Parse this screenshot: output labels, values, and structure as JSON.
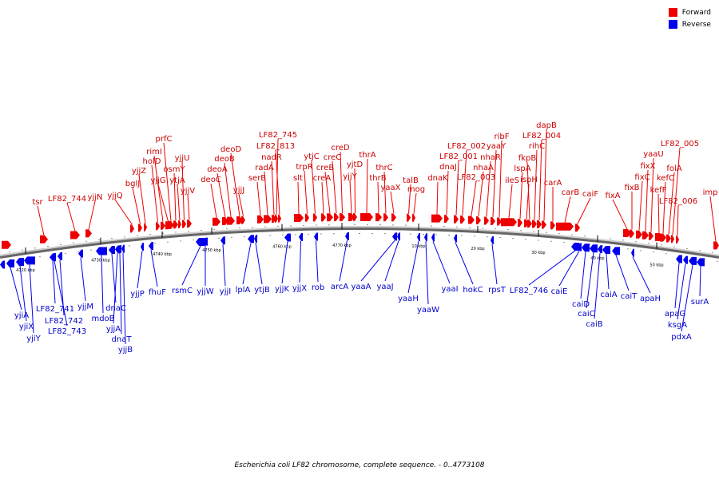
{
  "caption": "Escherichia coli LF82 chromosome, complete sequence. - 0..4773108",
  "legend": {
    "forward": {
      "label": "Forward",
      "color": "#ee0000"
    },
    "reverse": {
      "label": "Reverse",
      "color": "#0000ee"
    }
  },
  "colors": {
    "forward": "#ee0000",
    "reverse": "#0000ee",
    "forward_label": "#cc0000",
    "reverse_label": "#0000cc"
  },
  "ticks": [
    {
      "label": "4720 kbp"
    },
    {
      "label": "4730 kbp"
    },
    {
      "label": "4740 kbp"
    },
    {
      "label": "4750 kbp"
    },
    {
      "label": "4760 kbp"
    },
    {
      "label": "4770 kbp"
    },
    {
      "label": "10 kbp"
    },
    {
      "label": "20 kbp"
    },
    {
      "label": "30 kbp"
    },
    {
      "label": "40 kbp"
    },
    {
      "label": "50 kbp"
    }
  ],
  "forward_genes": [
    "tsr",
    "LF82_744",
    "yjjN",
    "yjjQ",
    "bglJ",
    "yjjZ",
    "holD",
    "rimI",
    "yjjG",
    "prfC",
    "osmY",
    "ytjA",
    "yjjU",
    "yjjV",
    "deoC",
    "deoA",
    "deoB",
    "deoD",
    "yjjJ",
    "serB",
    "radA",
    "nadR",
    "LF82_813",
    "LF82_745",
    "slt",
    "trpR",
    "ytjC",
    "creA",
    "creB",
    "creC",
    "creD",
    "yjjY",
    "yjtD",
    "thrA",
    "thrB",
    "thrC",
    "yaaX",
    "talB",
    "mog",
    "dnaK",
    "dnaJ",
    "LF82_001",
    "LF82_002",
    "LF82_003",
    "nhaA",
    "nhaR",
    "yaaY",
    "ribF",
    "ileS",
    "lspA",
    "ispH",
    "fkpB",
    "rihC",
    "LF82_004",
    "dapB",
    "carA",
    "carB",
    "caiF",
    "fixA",
    "fixB",
    "fixC",
    "fixX",
    "yaaU",
    "kefF",
    "kefC",
    "folA",
    "LF82_005",
    "LF82_006",
    "imp"
  ],
  "reverse_genes": [
    "yjiA",
    "yjiX",
    "yjiY",
    "LF82_741",
    "LF82_742",
    "LF82_743",
    "yjjM",
    "mdoB",
    "dnaC",
    "yjjA",
    "dnaT",
    "yjjB",
    "yjjP",
    "fhuF",
    "rsmC",
    "yjjW",
    "yjjI",
    "lplA",
    "ytjB",
    "yjjK",
    "yjjX",
    "rob",
    "arcA",
    "yaaA",
    "yaaJ",
    "yaaH",
    "yaaW",
    "yaaI",
    "hokC",
    "rpsT",
    "LF82_746",
    "caiE",
    "caiD",
    "caiC",
    "caiB",
    "caiA",
    "caiT",
    "apaH",
    "apaG",
    "ksgA",
    "pdxA",
    "surA"
  ]
}
